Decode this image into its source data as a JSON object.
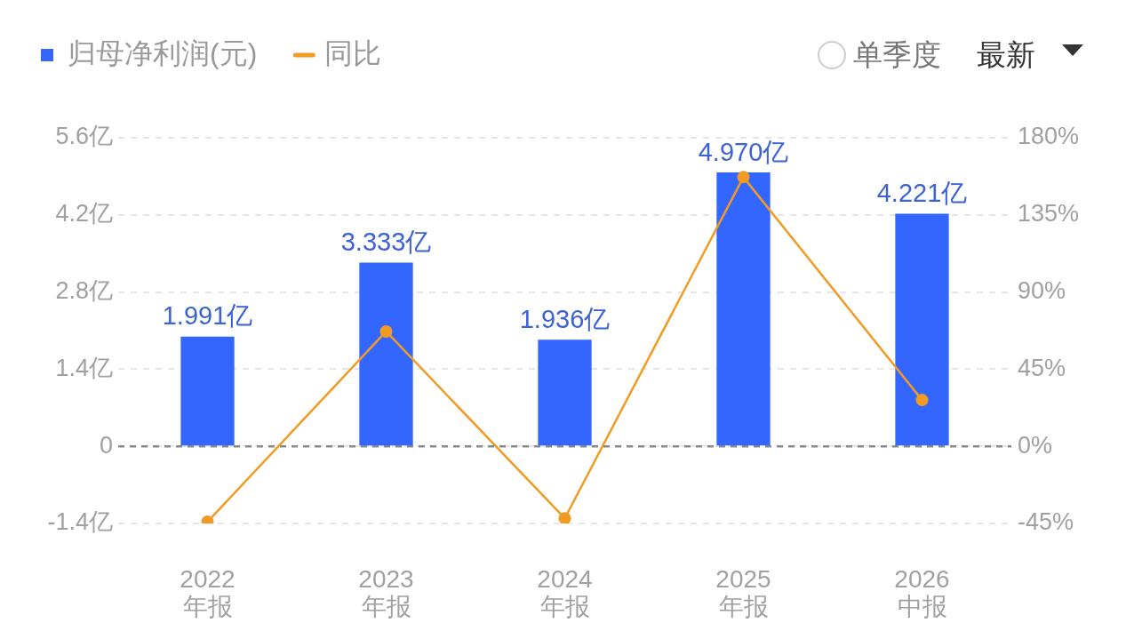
{
  "chart_data": {
    "type": "bar",
    "categories": [
      "2022\n年报",
      "2023\n年报",
      "2024\n年报",
      "2025\n年报",
      "2026\n中报"
    ],
    "series": [
      {
        "name": "归母净利润(元)",
        "color": "#3366ff",
        "values": [
          1.991,
          3.333,
          1.936,
          4.97,
          4.221
        ],
        "value_labels": [
          "1.991亿",
          "3.333亿",
          "1.936亿",
          "4.970亿",
          "4.221亿"
        ]
      },
      {
        "name": "同比",
        "type": "line",
        "axis": "y2",
        "color": "#f29b24",
        "values": [
          -44,
          67,
          -42,
          157,
          27
        ],
        "marker": "circle",
        "line_style": "solid"
      }
    ],
    "ylim": [
      -1.4,
      5.6
    ],
    "yticks": [
      {
        "value": -1.4,
        "label": "-1.4亿"
      },
      0,
      {
        "value": 1.4,
        "label": "1.4亿"
      },
      {
        "value": 2.8,
        "label": "2.8亿"
      },
      {
        "value": 4.2,
        "label": "4.2亿"
      },
      {
        "value": 5.6,
        "label": "5.6亿"
      }
    ],
    "y2lim": [
      -45,
      180
    ],
    "y2ticks": [
      {
        "value": -45,
        "label": "-45%"
      },
      {
        "value": 0,
        "label": "0%"
      },
      {
        "value": 45,
        "label": "45%"
      },
      {
        "value": 90,
        "label": "90%"
      },
      {
        "value": 135,
        "label": "135%"
      },
      {
        "value": 180,
        "label": "180%"
      }
    ],
    "ref_lines": [
      {
        "axis": "y",
        "value": 0,
        "color": "#8a8a8a",
        "line_style": "dashed"
      }
    ],
    "grid": "y",
    "legend": "top left",
    "annotations": [
      "单季度",
      "最新"
    ]
  }
}
